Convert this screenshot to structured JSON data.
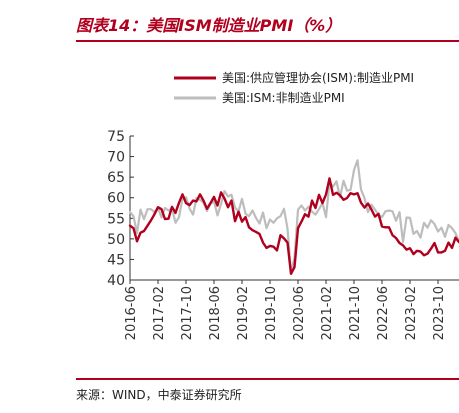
{
  "title": "图表14：美国ISM制造业PMI（%）",
  "source": "来源：WIND，中泰证券研究所",
  "colors": {
    "accent": "#b0001e",
    "series_manufacturing": "#b0001e",
    "series_services": "#bdbdbd",
    "axis": "#333333"
  },
  "chart_data": {
    "type": "line",
    "title": "",
    "xlabel": "",
    "ylabel": "",
    "ylim": [
      40,
      75
    ],
    "yticks": [
      40,
      45,
      50,
      55,
      60,
      65,
      70,
      75
    ],
    "xlim": [
      "2016-06",
      "2024-04"
    ],
    "xticks": [
      "2016-06",
      "2017-02",
      "2017-10",
      "2018-06",
      "2019-02",
      "2019-10",
      "2020-06",
      "2021-02",
      "2021-10",
      "2022-06",
      "2023-02",
      "2023-10"
    ],
    "grid": false,
    "legend_position": "top-right",
    "x": [
      "2016-06",
      "2016-07",
      "2016-08",
      "2016-09",
      "2016-10",
      "2016-11",
      "2016-12",
      "2017-01",
      "2017-02",
      "2017-03",
      "2017-04",
      "2017-05",
      "2017-06",
      "2017-07",
      "2017-08",
      "2017-09",
      "2017-10",
      "2017-11",
      "2017-12",
      "2018-01",
      "2018-02",
      "2018-03",
      "2018-04",
      "2018-05",
      "2018-06",
      "2018-07",
      "2018-08",
      "2018-09",
      "2018-10",
      "2018-11",
      "2018-12",
      "2019-01",
      "2019-02",
      "2019-03",
      "2019-04",
      "2019-05",
      "2019-06",
      "2019-07",
      "2019-08",
      "2019-09",
      "2019-10",
      "2019-11",
      "2019-12",
      "2020-01",
      "2020-02",
      "2020-03",
      "2020-04",
      "2020-05",
      "2020-06",
      "2020-07",
      "2020-08",
      "2020-09",
      "2020-10",
      "2020-11",
      "2020-12",
      "2021-01",
      "2021-02",
      "2021-03",
      "2021-04",
      "2021-05",
      "2021-06",
      "2021-07",
      "2021-08",
      "2021-09",
      "2021-10",
      "2021-11",
      "2021-12",
      "2022-01",
      "2022-02",
      "2022-03",
      "2022-04",
      "2022-05",
      "2022-06",
      "2022-07",
      "2022-08",
      "2022-09",
      "2022-10",
      "2022-11",
      "2022-12",
      "2023-01",
      "2023-02",
      "2023-03",
      "2023-04",
      "2023-05",
      "2023-06",
      "2023-07",
      "2023-08",
      "2023-09",
      "2023-10",
      "2023-11",
      "2023-12",
      "2024-01",
      "2024-02",
      "2024-03",
      "2024-04"
    ],
    "series": [
      {
        "name": "美国:供应管理协会(ISM):制造业PMI",
        "values": [
          53.2,
          52.6,
          49.4,
          51.5,
          51.9,
          53.2,
          54.5,
          56.0,
          57.7,
          57.2,
          54.8,
          54.9,
          57.8,
          56.3,
          58.8,
          60.8,
          58.7,
          58.2,
          59.3,
          59.1,
          60.8,
          59.3,
          57.3,
          58.7,
          60.2,
          58.1,
          61.3,
          59.8,
          57.7,
          59.3,
          54.3,
          56.6,
          54.2,
          55.3,
          52.8,
          52.1,
          51.7,
          51.2,
          49.1,
          47.8,
          48.3,
          48.1,
          47.2,
          50.9,
          50.1,
          49.1,
          41.5,
          43.1,
          52.6,
          54.2,
          56.0,
          55.4,
          59.3,
          57.5,
          60.7,
          58.7,
          60.8,
          64.7,
          60.7,
          61.2,
          60.6,
          59.5,
          59.9,
          61.1,
          60.8,
          61.1,
          58.8,
          57.6,
          58.6,
          57.1,
          55.4,
          56.1,
          53.0,
          52.8,
          52.8,
          50.9,
          50.2,
          49.0,
          48.4,
          47.4,
          47.7,
          46.3,
          47.1,
          46.9,
          46.0,
          46.4,
          47.6,
          49.0,
          46.7,
          46.7,
          47.1,
          49.1,
          47.8,
          50.3,
          49.2
        ]
      },
      {
        "name": "美国:ISM:非制造业PMI",
        "values": [
          56.5,
          55.5,
          51.4,
          57.1,
          54.8,
          57.2,
          57.2,
          56.5,
          57.6,
          55.2,
          57.5,
          56.9,
          57.4,
          53.9,
          55.3,
          59.8,
          60.1,
          57.4,
          55.9,
          59.9,
          59.5,
          58.8,
          56.8,
          58.6,
          59.1,
          55.7,
          58.5,
          61.6,
          60.3,
          60.7,
          57.6,
          56.7,
          59.7,
          56.1,
          55.5,
          56.9,
          55.1,
          53.7,
          56.4,
          52.6,
          54.7,
          53.9,
          55.0,
          55.5,
          57.3,
          52.5,
          41.8,
          45.4,
          57.1,
          58.1,
          56.9,
          57.8,
          56.6,
          55.9,
          57.2,
          58.7,
          55.3,
          63.7,
          62.7,
          64.0,
          60.1,
          64.1,
          61.7,
          61.9,
          66.7,
          69.1,
          62.0,
          59.9,
          56.5,
          58.3,
          57.1,
          55.9,
          55.3,
          56.7,
          56.9,
          56.7,
          54.4,
          56.5,
          49.2,
          55.2,
          55.1,
          51.2,
          51.9,
          50.3,
          53.9,
          52.7,
          54.5,
          53.6,
          51.8,
          52.7,
          50.5,
          53.4,
          52.6,
          51.4,
          49.4
        ]
      }
    ]
  }
}
